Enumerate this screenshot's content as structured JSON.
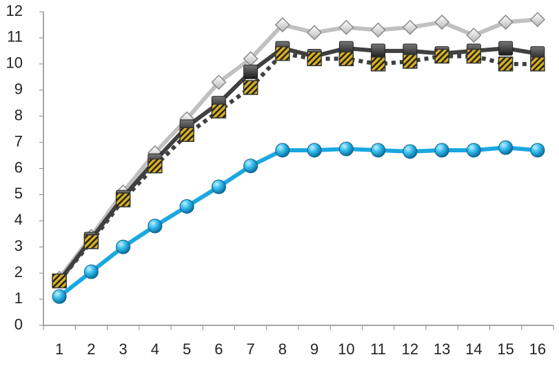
{
  "chart_data": {
    "type": "line",
    "categories": [
      "1",
      "2",
      "3",
      "4",
      "5",
      "6",
      "7",
      "8",
      "9",
      "10",
      "11",
      "12",
      "13",
      "14",
      "15",
      "16"
    ],
    "ylim": [
      0,
      12
    ],
    "yticks": [
      0,
      1,
      2,
      3,
      4,
      5,
      6,
      7,
      8,
      9,
      10,
      11,
      12
    ],
    "series": [
      {
        "color": "#c0c0c0",
        "marker": "diamond",
        "dash": "solid",
        "values": [
          1.8,
          3.4,
          5.1,
          6.6,
          7.9,
          9.3,
          10.2,
          11.5,
          11.2,
          11.4,
          11.3,
          11.4,
          11.6,
          11.1,
          11.6,
          11.7
        ]
      },
      {
        "color": "#404040",
        "marker": "square",
        "dash": "solid",
        "values": [
          1.7,
          3.3,
          4.9,
          6.3,
          7.6,
          8.5,
          9.7,
          10.6,
          10.3,
          10.6,
          10.5,
          10.5,
          10.4,
          10.5,
          10.6,
          10.4
        ]
      },
      {
        "color": "#404040",
        "marker": "hatched-square",
        "dash": "dotted",
        "values": [
          1.7,
          3.2,
          4.8,
          6.1,
          7.3,
          8.2,
          9.1,
          10.4,
          10.2,
          10.2,
          10.0,
          10.1,
          10.3,
          10.3,
          10.0,
          10.0
        ]
      },
      {
        "color": "#1ba8e0",
        "marker": "circle",
        "dash": "solid",
        "values": [
          1.1,
          2.05,
          3.0,
          3.8,
          4.55,
          5.3,
          6.1,
          6.7,
          6.7,
          6.75,
          6.7,
          6.65,
          6.7,
          6.7,
          6.8,
          6.7
        ]
      }
    ]
  }
}
